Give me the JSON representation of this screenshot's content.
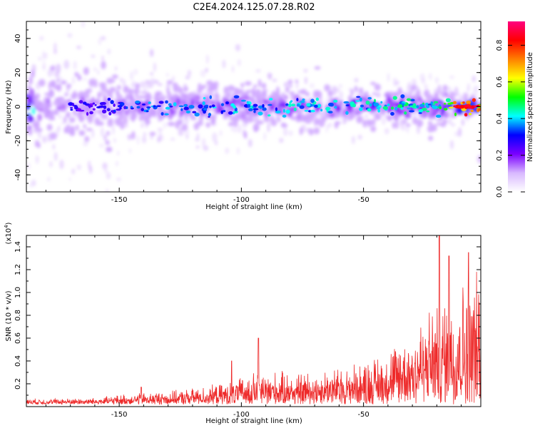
{
  "title": "C2E4.2024.125.07.28.R02",
  "chart_data": [
    {
      "type": "heatmap",
      "xlabel": "Height of straight line (km)",
      "ylabel": "Frequency (Hz)",
      "xlim": [
        -188,
        -2
      ],
      "ylim": [
        -50,
        50
      ],
      "x_ticks": [
        -150,
        -100,
        -50
      ],
      "y_ticks": [
        -40,
        -20,
        0,
        20,
        40
      ],
      "colorbar": {
        "label": "Normalized spectral amplitude",
        "range": [
          0,
          0.93
        ],
        "ticks": [
          0.0,
          0.2,
          0.4,
          0.6,
          0.8
        ],
        "colors": [
          "#ffffff",
          "#d8b8ff",
          "#7a00ff",
          "#0000ff",
          "#00ffff",
          "#00ff00",
          "#ffff00",
          "#ff8000",
          "#ff0000",
          "#ff0080"
        ]
      },
      "ridge": {
        "center_frequency": 0,
        "core_amplitude_by_height": [
          {
            "x": -185,
            "amp": 0.35
          },
          {
            "x": -160,
            "amp": 0.3
          },
          {
            "x": -140,
            "amp": 0.4
          },
          {
            "x": -120,
            "amp": 0.42
          },
          {
            "x": -100,
            "amp": 0.45
          },
          {
            "x": -80,
            "amp": 0.45
          },
          {
            "x": -60,
            "amp": 0.48
          },
          {
            "x": -40,
            "amp": 0.5
          },
          {
            "x": -20,
            "amp": 0.5
          },
          {
            "x": -10,
            "amp": 0.9
          },
          {
            "x": -3,
            "amp": 0.85
          }
        ]
      }
    },
    {
      "type": "line",
      "xlabel": "Height of straight line (km)",
      "ylabel": "SNR (10 * v/v)",
      "y_multiplier": "(x10",
      "y_multiplier_exp": "4",
      "y_multiplier_close": ")",
      "xlim": [
        -188,
        -2
      ],
      "ylim": [
        0,
        1.5
      ],
      "x_ticks": [
        -150,
        -100,
        -50
      ],
      "y_ticks": [
        0.2,
        0.4,
        0.6,
        0.8,
        1.0,
        1.2,
        1.4
      ],
      "series_color": "#ee2a2a",
      "envelope": [
        {
          "x": -188,
          "y": 0.05
        },
        {
          "x": -160,
          "y": 0.06
        },
        {
          "x": -145,
          "y": 0.1
        },
        {
          "x": -125,
          "y": 0.13
        },
        {
          "x": -105,
          "y": 0.2
        },
        {
          "x": -95,
          "y": 0.3
        },
        {
          "x": -75,
          "y": 0.3
        },
        {
          "x": -55,
          "y": 0.36
        },
        {
          "x": -40,
          "y": 0.5
        },
        {
          "x": -30,
          "y": 0.75
        },
        {
          "x": -20,
          "y": 0.95
        },
        {
          "x": -10,
          "y": 1.15
        },
        {
          "x": -2,
          "y": 1.25
        }
      ],
      "peaks": [
        {
          "x": -141,
          "y": 0.17
        },
        {
          "x": -104,
          "y": 0.4
        },
        {
          "x": -93,
          "y": 0.6
        },
        {
          "x": -19,
          "y": 1.52
        },
        {
          "x": -15,
          "y": 1.32
        },
        {
          "x": -7,
          "y": 1.35
        }
      ]
    }
  ]
}
